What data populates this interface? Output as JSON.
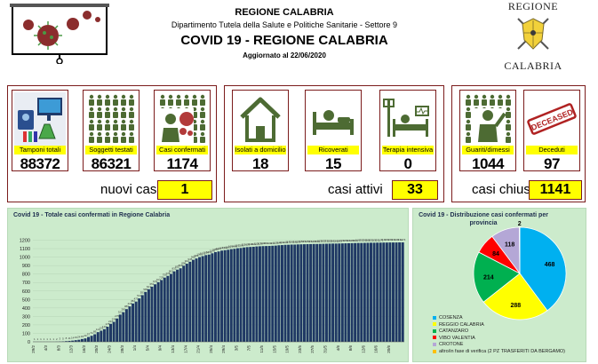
{
  "header": {
    "region": "REGIONE CALABRIA",
    "department": "Dipartimento Tutela della Salute e Politiche Sanitarie - Settore 9",
    "title": "COVID 19 - REGIONE CALABRIA",
    "updated": "Aggiornato al  22/06/2020"
  },
  "logo": {
    "top": "REGIONE",
    "bottom": "CALABRIA"
  },
  "cards": {
    "tamponi": {
      "label": "Tamponi totali",
      "value": "88372",
      "icon": "lab-icon"
    },
    "soggetti": {
      "label": "Soggetti testati",
      "value": "86321",
      "icon": "people-icon"
    },
    "confermati": {
      "label": "Casi confermati",
      "value": "1174",
      "icon": "virus-person-icon"
    },
    "isolati": {
      "label": "Isolati a domicilio",
      "value": "18",
      "icon": "house-icon"
    },
    "ricoverati": {
      "label": "Ricoverati",
      "value": "15",
      "icon": "hospital-bed-icon"
    },
    "terapia": {
      "label": "Terapia intensiva",
      "value": "0",
      "icon": "icu-icon"
    },
    "guariti": {
      "label": "Guariti/dimessi",
      "value": "1044",
      "icon": "recovered-person-icon"
    },
    "deceduti": {
      "label": "Deceduti",
      "value": "97",
      "icon": "deceased-stamp-icon"
    }
  },
  "stamp_text": "DECEASED",
  "summary": {
    "nuovi_label": "nuovi casi",
    "nuovi_value": "1",
    "attivi_label": "casi attivi",
    "attivi_value": "33",
    "chiusi_label": "casi chiusi",
    "chiusi_value": "1141"
  },
  "colors": {
    "panel_border": "#7b1c1c",
    "highlight": "#ffff00",
    "chart_bg": "#ccebcc",
    "bar": "#1f3864"
  },
  "chart_data": [
    {
      "type": "bar",
      "title": "Covid 19 - Totale casi confermati in Regione Calabria",
      "ylim": [
        0,
        1300
      ],
      "yticks": [
        0,
        100,
        200,
        300,
        400,
        500,
        600,
        700,
        800,
        900,
        1000,
        1100,
        1200
      ],
      "grid": true,
      "first_date": "29/2",
      "last_date": "22/6",
      "tick_labels": [
        "29/2",
        "4/3",
        "8/3",
        "12/3",
        "16/3",
        "20/3",
        "24/3",
        "28/3",
        "1/4",
        "5/4",
        "9/4",
        "13/4",
        "17/4",
        "21/4",
        "25/4",
        "29/4",
        "3/5",
        "7/5",
        "11/5",
        "15/5",
        "19/5",
        "23/5",
        "27/5",
        "31/5",
        "4/6",
        "8/6",
        "12/6",
        "16/6",
        "20/6"
      ],
      "values": [
        1,
        1,
        1,
        1,
        1,
        1,
        1,
        2,
        3,
        5,
        8,
        11,
        14,
        19,
        24,
        33,
        40,
        57,
        71,
        89,
        114,
        131,
        149,
        178,
        212,
        236,
        275,
        321,
        350,
        386,
        418,
        452,
        475,
        512,
        551,
        589,
        621,
        651,
        679,
        704,
        729,
        758,
        778,
        802,
        832,
        852,
        868,
        898,
        922,
        945,
        968,
        984,
        1000,
        1012,
        1024,
        1030,
        1045,
        1059,
        1067,
        1077,
        1082,
        1087,
        1094,
        1098,
        1105,
        1108,
        1114,
        1118,
        1120,
        1122,
        1126,
        1128,
        1130,
        1131,
        1132,
        1134,
        1136,
        1140,
        1142,
        1145,
        1146,
        1148,
        1148,
        1150,
        1151,
        1152,
        1153,
        1154,
        1155,
        1155,
        1156,
        1157,
        1158,
        1159,
        1160,
        1160,
        1161,
        1162,
        1163,
        1164,
        1165,
        1166,
        1167,
        1167,
        1168,
        1169,
        1170,
        1170,
        1171,
        1171,
        1172,
        1172,
        1173,
        1173,
        1173,
        1174,
        1174
      ]
    },
    {
      "type": "pie",
      "title": "Covid 19 - Distribuzione casi confermati per provincia",
      "categories": [
        "COSENZA",
        "REGGIO CALABRIA",
        "CATANZARO",
        "VIBO VALENTIA",
        "CROTONE",
        "altro/in fase di verifica (2 PZ TRASFERITI DA BERGAMO)"
      ],
      "values": [
        468,
        288,
        214,
        84,
        118,
        2
      ],
      "colors": [
        "#00b0f0",
        "#ffff00",
        "#00b050",
        "#ff0000",
        "#b4a7d6",
        "#ffc000"
      ],
      "legend": "bottom-left"
    }
  ]
}
